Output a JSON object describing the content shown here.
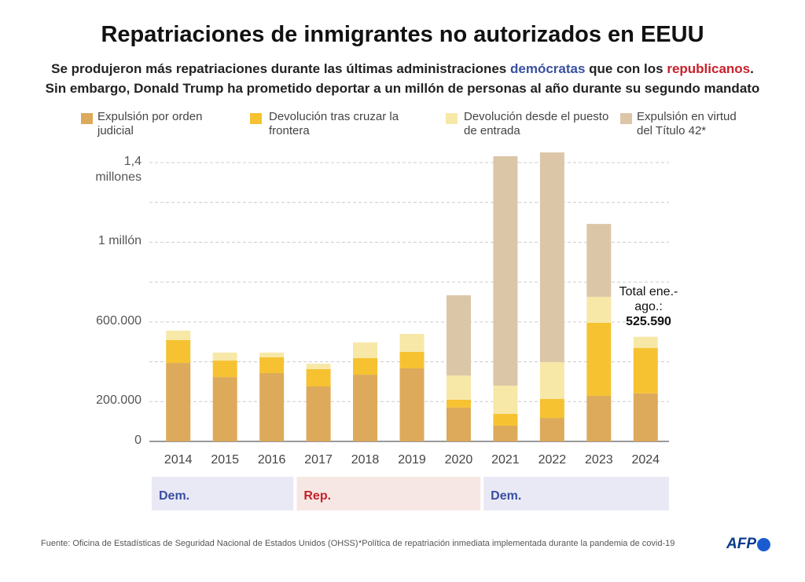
{
  "chart_data": {
    "type": "stacked_bar",
    "title": "Repatriaciones de inmigrantes no autorizados en EEUU",
    "subtitle_lines": [
      [
        {
          "text": "Se produjeron más repatriaciones durante las últimas administraciones "
        },
        {
          "text": "demócratas",
          "color": "#3a4fa0"
        },
        {
          "text": " que con los "
        },
        {
          "text": "republicanos",
          "color": "#c8202b"
        },
        {
          "text": "."
        }
      ],
      [
        {
          "text": "Sin embargo, Donald Trump ha prometido deportar a un millón de personas al año durante su segundo mandato"
        }
      ]
    ],
    "categories": [
      "2014",
      "2015",
      "2016",
      "2017",
      "2018",
      "2019",
      "2020",
      "2021",
      "2022",
      "2023",
      "2024"
    ],
    "series": [
      {
        "name": "Expulsión por orden judicial",
        "color": "#dcaa5a",
        "values": [
          394000,
          323000,
          343000,
          276000,
          335000,
          367000,
          170000,
          79000,
          118000,
          229000,
          241000
        ]
      },
      {
        "name": "Devolución tras cruzar la frontera",
        "color": "#f6c231",
        "values": [
          115000,
          83000,
          79000,
          87000,
          83000,
          83000,
          39000,
          59000,
          95000,
          367000,
          228000
        ]
      },
      {
        "name": "Devolución desde el puesto de entrada",
        "color": "#f7e8a8",
        "values": [
          47000,
          40000,
          24000,
          27000,
          79000,
          90000,
          122000,
          142000,
          185000,
          130000,
          56590
        ]
      },
      {
        "name": "Expulsión en virtud del Título 42*",
        "color": "#dcc6a8",
        "values": [
          0,
          0,
          0,
          0,
          0,
          0,
          403000,
          1152000,
          1053000,
          366000,
          0
        ]
      }
    ],
    "ylim": [
      0,
      1400000
    ],
    "yticks": [
      0,
      {
        "value": 200000,
        "label": "200.000"
      },
      {
        "value": 400000,
        "label": null
      },
      {
        "value": 600000,
        "label": "600.000"
      },
      {
        "value": 800000,
        "label": null
      },
      {
        "value": 1000000,
        "label": "1 millón"
      },
      {
        "value": 1200000,
        "label": null
      },
      {
        "value": 1400000,
        "label": "1,4 millones"
      }
    ],
    "grid": true,
    "annotation": "Total ene.-ago.:",
    "annotation_value": "525.590",
    "administrations": [
      {
        "label": "Dem.",
        "from": "2014",
        "to": "2016",
        "color": "#e9e9f6",
        "text_color": "#3a4fa0"
      },
      {
        "label": "Rep.",
        "from": "2017",
        "to": "2020",
        "color": "#f7e7e4",
        "text_color": "#c8202b"
      },
      {
        "label": "Dem.",
        "from": "2021",
        "to": "2024",
        "color": "#e9e9f6",
        "text_color": "#3a4fa0"
      }
    ],
    "source": "Fuente: Oficina de Estadísticas de Seguridad Nacional de Estados Unidos (OHSS)",
    "note": "*Política de repatriación inmediata implementada durante la pandemia de covid-19",
    "logo": "AFP"
  }
}
